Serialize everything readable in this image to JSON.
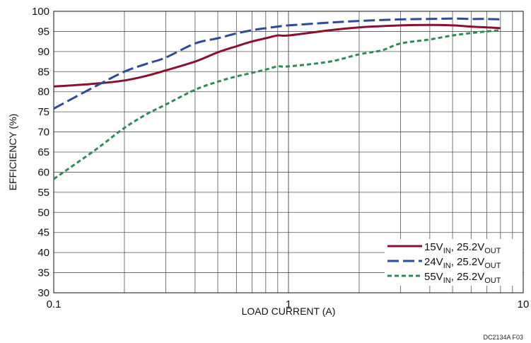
{
  "chart_data": {
    "type": "line",
    "xlabel": "LOAD CURRENT (A)",
    "ylabel": "EFFICIENCY (%)",
    "x_scale": "log",
    "xlim": [
      0.1,
      10
    ],
    "ylim": [
      30,
      100
    ],
    "x_ticks": [
      0.1,
      1,
      10
    ],
    "x_tick_labels": [
      "0.1",
      "1",
      "10"
    ],
    "y_ticks": [
      30,
      35,
      40,
      45,
      50,
      55,
      60,
      65,
      70,
      75,
      80,
      85,
      90,
      95,
      100
    ],
    "grid": true,
    "legend_position": "bottom-right",
    "footnote": "DC2134A F03",
    "series": [
      {
        "name": "15VIN, 25.2VOUT",
        "label_parts": [
          [
            "15V",
            ""
          ],
          [
            "IN",
            "sub"
          ],
          [
            ", 25.2V",
            ""
          ],
          [
            "OUT",
            "sub"
          ]
        ],
        "color": "#8b1030",
        "dash": "solid",
        "x": [
          0.1,
          0.15,
          0.2,
          0.25,
          0.3,
          0.4,
          0.5,
          0.6,
          0.7,
          0.8,
          0.9,
          1.0,
          1.5,
          2,
          3,
          4,
          5,
          6,
          7,
          8
        ],
        "y": [
          81.3,
          82.0,
          82.8,
          84.0,
          85.3,
          87.5,
          89.8,
          91.3,
          92.5,
          93.3,
          94.0,
          94.0,
          95.3,
          96.0,
          96.5,
          96.6,
          96.5,
          96.2,
          96.0,
          95.8
        ]
      },
      {
        "name": "24VIN, 25.2VOUT",
        "label_parts": [
          [
            "24V",
            ""
          ],
          [
            "IN",
            "sub"
          ],
          [
            ", 25.2V",
            ""
          ],
          [
            "OUT",
            "sub"
          ]
        ],
        "color": "#2e4a9a",
        "dash": "long-dash",
        "x": [
          0.1,
          0.15,
          0.2,
          0.25,
          0.3,
          0.4,
          0.5,
          0.6,
          0.7,
          0.8,
          0.9,
          1.0,
          1.5,
          2,
          3,
          4,
          5,
          6,
          7,
          8
        ],
        "y": [
          75.8,
          81.3,
          85.0,
          87.0,
          88.5,
          92.0,
          93.3,
          94.5,
          95.3,
          95.8,
          96.2,
          96.5,
          97.2,
          97.6,
          98.0,
          98.1,
          98.2,
          98.1,
          98.1,
          98.0
        ]
      },
      {
        "name": "55VIN, 25.2VOUT",
        "label_parts": [
          [
            "55V",
            ""
          ],
          [
            "IN",
            "sub"
          ],
          [
            ", 25.2V",
            ""
          ],
          [
            "OUT",
            "sub"
          ]
        ],
        "color": "#2f8a55",
        "dash": "short-dash",
        "x": [
          0.1,
          0.15,
          0.2,
          0.25,
          0.3,
          0.4,
          0.5,
          0.6,
          0.7,
          0.8,
          0.9,
          1.0,
          1.5,
          2,
          2.5,
          3,
          4,
          5,
          6,
          7,
          8
        ],
        "y": [
          58.3,
          65.5,
          71.0,
          74.5,
          76.8,
          80.5,
          82.5,
          83.8,
          84.7,
          85.5,
          86.3,
          86.3,
          87.5,
          89.3,
          90.3,
          92.0,
          93.0,
          94.0,
          94.6,
          95.0,
          95.3
        ]
      }
    ]
  }
}
